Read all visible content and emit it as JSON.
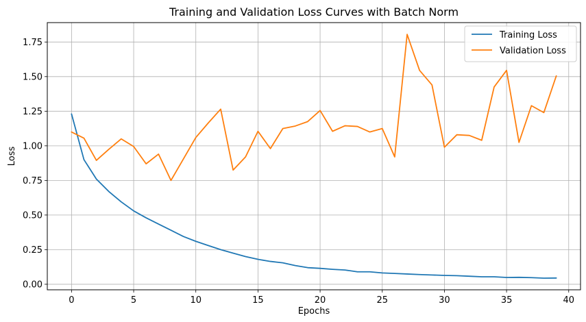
{
  "chart_data": {
    "type": "line",
    "title": "Training and Validation Loss Curves with Batch Norm",
    "xlabel": "Epochs",
    "ylabel": "Loss",
    "xlim": [
      -1.95,
      40.95
    ],
    "ylim": [
      -0.04,
      1.89
    ],
    "xticks": [
      0,
      5,
      10,
      15,
      20,
      25,
      30,
      35,
      40
    ],
    "yticks": [
      0.0,
      0.25,
      0.5,
      0.75,
      1.0,
      1.25,
      1.5,
      1.75
    ],
    "ytick_labels": [
      "0.00",
      "0.25",
      "0.50",
      "0.75",
      "1.00",
      "1.25",
      "1.50",
      "1.75"
    ],
    "grid": true,
    "legend_position": "top-right",
    "x": [
      0,
      1,
      2,
      3,
      4,
      5,
      6,
      7,
      8,
      9,
      10,
      11,
      12,
      13,
      14,
      15,
      16,
      17,
      18,
      19,
      20,
      21,
      22,
      23,
      24,
      25,
      26,
      27,
      28,
      29,
      30,
      31,
      32,
      33,
      34,
      35,
      36,
      37,
      38,
      39
    ],
    "series": [
      {
        "name": "Training Loss",
        "color": "#1f77b4",
        "values": [
          1.23,
          0.9,
          0.76,
          0.67,
          0.595,
          0.53,
          0.48,
          0.435,
          0.39,
          0.345,
          0.31,
          0.28,
          0.25,
          0.225,
          0.2,
          0.18,
          0.165,
          0.155,
          0.135,
          0.12,
          0.115,
          0.108,
          0.103,
          0.09,
          0.09,
          0.082,
          0.078,
          0.074,
          0.07,
          0.067,
          0.064,
          0.062,
          0.058,
          0.054,
          0.054,
          0.049,
          0.05,
          0.048,
          0.044,
          0.045
        ]
      },
      {
        "name": "Validation Loss",
        "color": "#ff7f0e",
        "values": [
          1.1,
          1.055,
          0.895,
          0.975,
          1.05,
          0.995,
          0.87,
          0.94,
          0.75,
          0.905,
          1.06,
          1.165,
          1.265,
          0.825,
          0.92,
          1.105,
          0.98,
          1.125,
          1.143,
          1.175,
          1.255,
          1.105,
          1.145,
          1.14,
          1.1,
          1.125,
          0.92,
          1.805,
          1.545,
          1.44,
          0.99,
          1.08,
          1.075,
          1.04,
          1.425,
          1.545,
          1.025,
          1.29,
          1.24,
          1.505
        ]
      }
    ]
  }
}
